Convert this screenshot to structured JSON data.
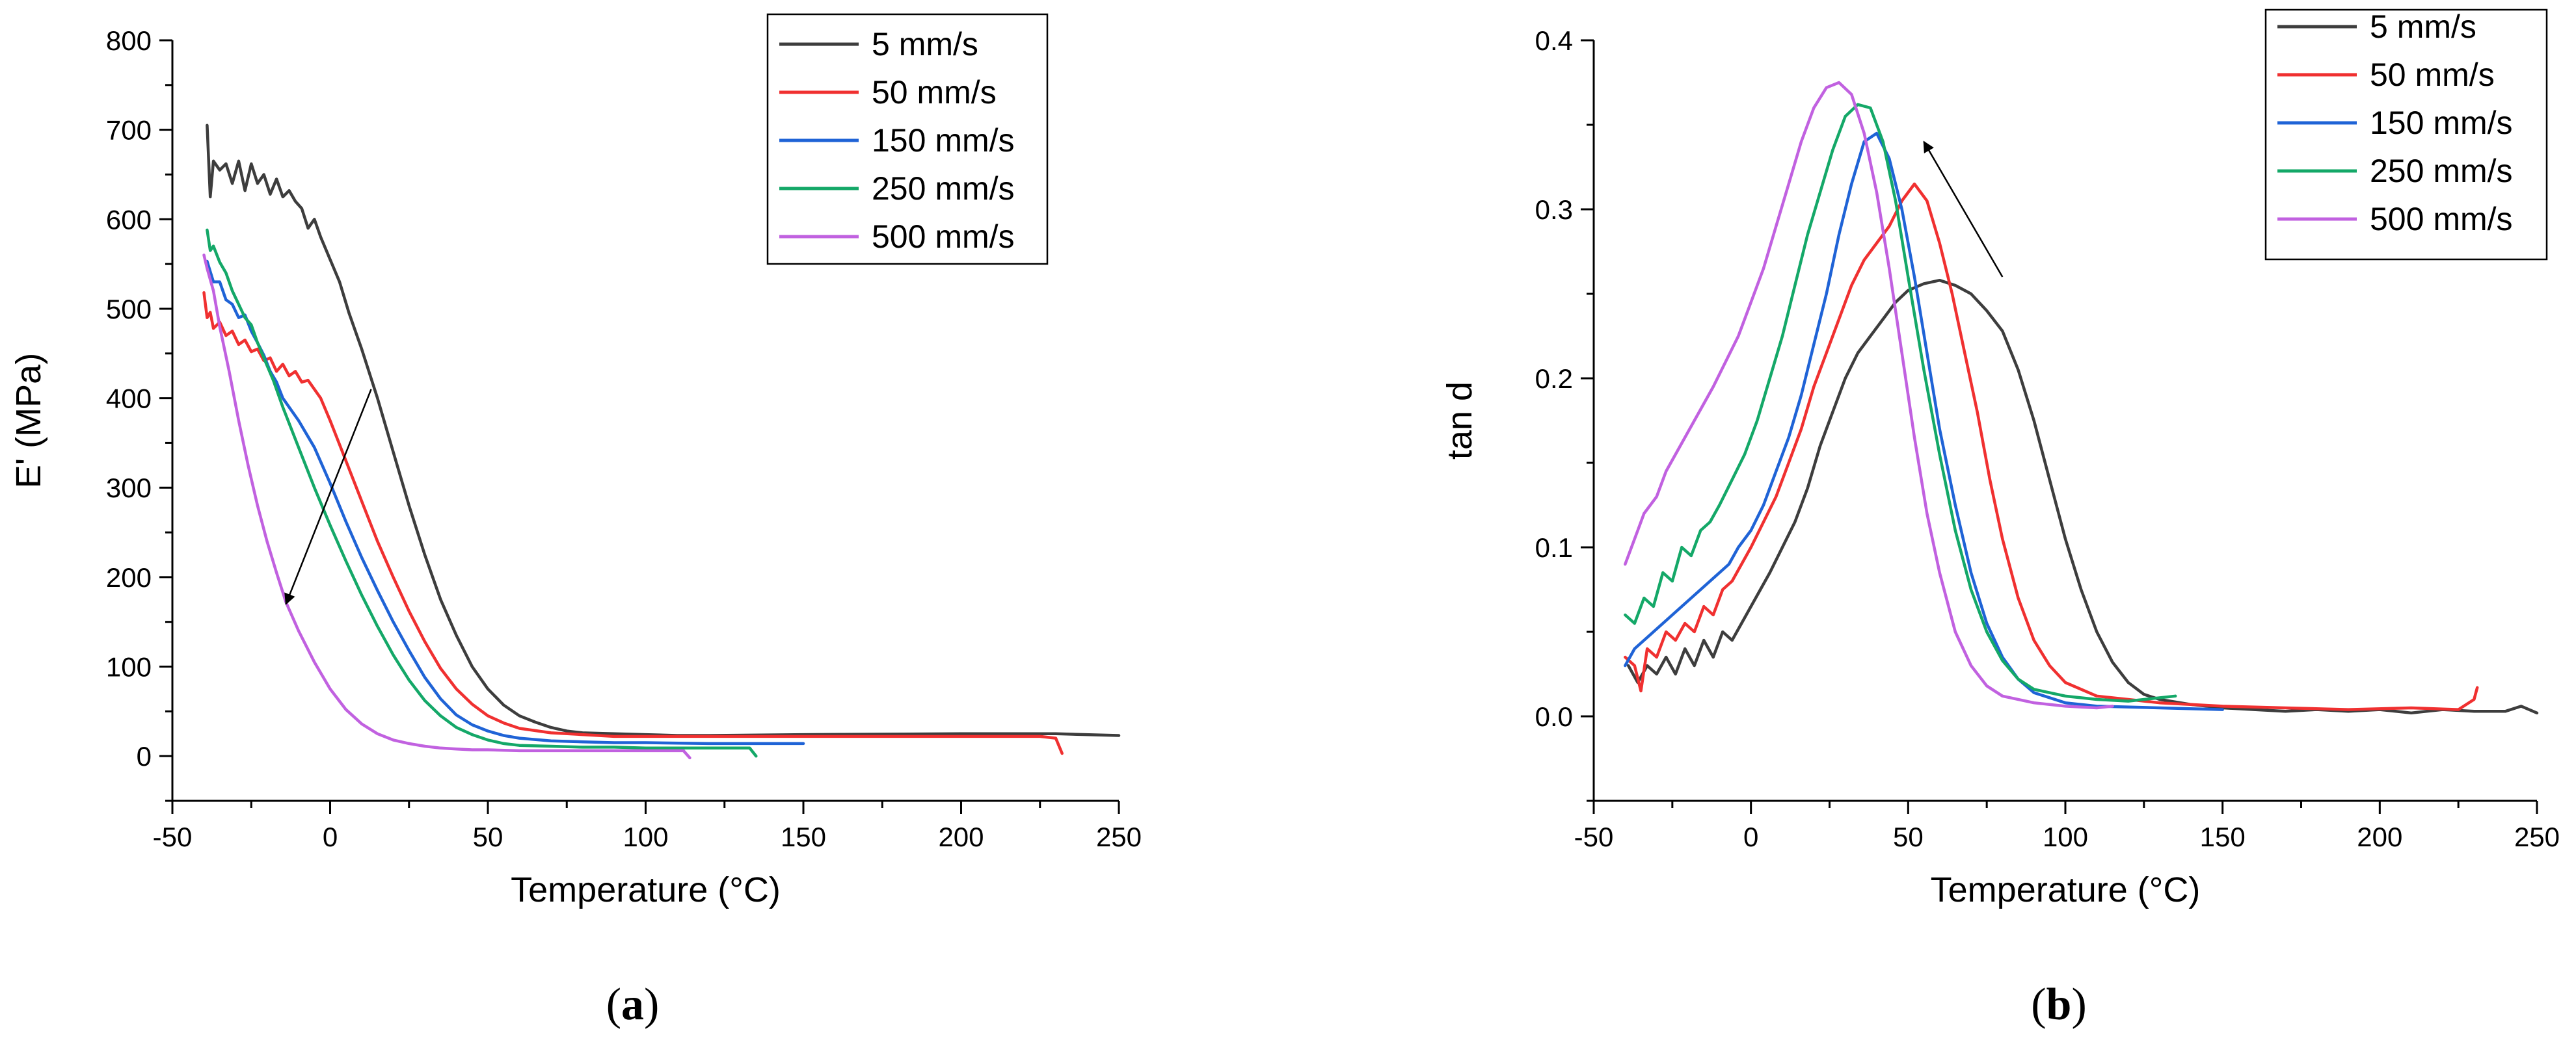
{
  "chart_data": [
    {
      "type": "line",
      "panel_label": "a",
      "title": "",
      "xlabel": "Temperature (°C)",
      "ylabel": "E' (MPa)",
      "xlim": [
        -50,
        250
      ],
      "ylim": [
        -50,
        800
      ],
      "xticks": [
        -50,
        0,
        50,
        100,
        150,
        200,
        250
      ],
      "yticks": [
        0,
        100,
        200,
        300,
        400,
        500,
        600,
        700,
        800
      ],
      "legend_position": "top-right",
      "arrow": {
        "from": [
          13,
          410
        ],
        "to": [
          -14,
          170
        ]
      },
      "series": [
        {
          "name": "5 mm/s",
          "color": "#3d3d3d",
          "x": [
            -39,
            -38,
            -37,
            -35,
            -33,
            -31,
            -29,
            -27,
            -25,
            -23,
            -21,
            -19,
            -17,
            -15,
            -13,
            -11,
            -9,
            -7,
            -5,
            -3,
            0,
            3,
            6,
            10,
            15,
            20,
            25,
            30,
            35,
            40,
            45,
            50,
            55,
            60,
            65,
            70,
            75,
            80,
            90,
            100,
            110,
            120,
            150,
            200,
            230,
            250
          ],
          "y": [
            705,
            625,
            665,
            655,
            662,
            640,
            665,
            632,
            662,
            640,
            650,
            628,
            645,
            625,
            632,
            620,
            612,
            590,
            600,
            580,
            555,
            530,
            495,
            455,
            400,
            340,
            280,
            225,
            175,
            135,
            100,
            75,
            57,
            45,
            38,
            32,
            28,
            26,
            25,
            24,
            23,
            23,
            24,
            25,
            25,
            23
          ]
        },
        {
          "name": "50 mm/s",
          "color": "#f03030",
          "x": [
            -40,
            -39,
            -38,
            -37,
            -35,
            -33,
            -31,
            -29,
            -27,
            -25,
            -23,
            -21,
            -19,
            -17,
            -15,
            -13,
            -11,
            -9,
            -7,
            -5,
            -3,
            0,
            5,
            10,
            15,
            20,
            25,
            30,
            35,
            40,
            45,
            50,
            55,
            60,
            70,
            80,
            90,
            100,
            150,
            200,
            225,
            230,
            232
          ],
          "y": [
            518,
            490,
            496,
            478,
            485,
            470,
            475,
            460,
            465,
            452,
            455,
            442,
            445,
            430,
            438,
            425,
            430,
            418,
            420,
            410,
            400,
            375,
            330,
            285,
            240,
            200,
            162,
            128,
            98,
            75,
            58,
            45,
            37,
            31,
            26,
            24,
            22,
            22,
            22,
            22,
            22,
            20,
            3
          ]
        },
        {
          "name": "150 mm/s",
          "color": "#1f63d6",
          "x": [
            -39,
            -37,
            -35,
            -33,
            -31,
            -29,
            -27,
            -25,
            -23,
            -21,
            -19,
            -17,
            -15,
            -10,
            -5,
            0,
            5,
            10,
            15,
            20,
            25,
            30,
            35,
            40,
            45,
            50,
            55,
            60,
            70,
            80,
            90,
            100,
            120,
            150
          ],
          "y": [
            553,
            530,
            530,
            510,
            505,
            490,
            493,
            475,
            462,
            448,
            430,
            418,
            400,
            375,
            345,
            305,
            262,
            222,
            185,
            150,
            118,
            88,
            64,
            46,
            35,
            28,
            23,
            20,
            17,
            16,
            15,
            15,
            14,
            14
          ]
        },
        {
          "name": "250 mm/s",
          "color": "#14a868",
          "x": [
            -39,
            -38,
            -37,
            -35,
            -33,
            -31,
            -29,
            -27,
            -25,
            -23,
            -21,
            -18,
            -15,
            -10,
            -5,
            0,
            5,
            10,
            15,
            20,
            25,
            30,
            35,
            40,
            45,
            50,
            55,
            60,
            70,
            80,
            90,
            100,
            120,
            133,
            135
          ],
          "y": [
            588,
            565,
            570,
            552,
            540,
            520,
            505,
            490,
            482,
            462,
            445,
            420,
            390,
            345,
            300,
            258,
            218,
            180,
            145,
            113,
            85,
            62,
            45,
            32,
            24,
            18,
            14,
            12,
            11,
            10,
            10,
            9,
            9,
            9,
            0
          ]
        },
        {
          "name": "500 mm/s",
          "color": "#c161e0",
          "x": [
            -40,
            -39,
            -37,
            -35,
            -32,
            -29,
            -26,
            -23,
            -20,
            -17,
            -14,
            -10,
            -5,
            0,
            5,
            10,
            15,
            20,
            25,
            30,
            35,
            40,
            45,
            50,
            60,
            70,
            80,
            100,
            112,
            114
          ],
          "y": [
            560,
            545,
            520,
            480,
            430,
            375,
            325,
            280,
            240,
            205,
            172,
            140,
            105,
            75,
            52,
            36,
            25,
            18,
            14,
            11,
            9,
            8,
            7,
            7,
            6,
            6,
            6,
            6,
            6,
            -2
          ]
        }
      ]
    },
    {
      "type": "line",
      "panel_label": "b",
      "title": "",
      "xlabel": "Temperature (°C)",
      "ylabel": "tan d",
      "xlim": [
        -50,
        250
      ],
      "ylim": [
        -0.05,
        0.4
      ],
      "xticks": [
        -50,
        0,
        50,
        100,
        150,
        200,
        250
      ],
      "yticks": [
        0.0,
        0.1,
        0.2,
        0.3,
        0.4
      ],
      "legend_position": "top-right",
      "arrow": {
        "from": [
          80,
          0.26
        ],
        "to": [
          55,
          0.34
        ]
      },
      "series": [
        {
          "name": "5 mm/s",
          "color": "#3d3d3d",
          "x": [
            -39,
            -36,
            -33,
            -30,
            -27,
            -24,
            -21,
            -18,
            -15,
            -12,
            -9,
            -6,
            -3,
            0,
            3,
            6,
            10,
            14,
            18,
            22,
            26,
            30,
            34,
            38,
            42,
            46,
            50,
            55,
            60,
            65,
            70,
            75,
            80,
            85,
            90,
            95,
            100,
            105,
            110,
            115,
            120,
            125,
            130,
            140,
            150,
            160,
            170,
            180,
            190,
            200,
            210,
            220,
            230,
            240,
            245,
            250
          ],
          "y": [
            0.03,
            0.02,
            0.03,
            0.025,
            0.035,
            0.025,
            0.04,
            0.03,
            0.045,
            0.035,
            0.05,
            0.045,
            0.055,
            0.065,
            0.075,
            0.085,
            0.1,
            0.115,
            0.135,
            0.16,
            0.18,
            0.2,
            0.215,
            0.225,
            0.235,
            0.245,
            0.252,
            0.256,
            0.258,
            0.255,
            0.25,
            0.24,
            0.228,
            0.205,
            0.175,
            0.14,
            0.105,
            0.075,
            0.05,
            0.032,
            0.02,
            0.013,
            0.01,
            0.007,
            0.005,
            0.004,
            0.003,
            0.004,
            0.003,
            0.004,
            0.002,
            0.004,
            0.003,
            0.003,
            0.006,
            0.002
          ]
        },
        {
          "name": "50 mm/s",
          "color": "#f03030",
          "x": [
            -40,
            -37,
            -35,
            -33,
            -30,
            -27,
            -24,
            -21,
            -18,
            -15,
            -12,
            -9,
            -6,
            -3,
            0,
            4,
            8,
            12,
            16,
            20,
            24,
            28,
            32,
            36,
            40,
            44,
            48,
            52,
            56,
            60,
            64,
            68,
            72,
            76,
            80,
            85,
            90,
            95,
            100,
            110,
            120,
            130,
            150,
            170,
            190,
            210,
            225,
            230,
            231
          ],
          "y": [
            0.035,
            0.03,
            0.015,
            0.04,
            0.035,
            0.05,
            0.045,
            0.055,
            0.05,
            0.065,
            0.06,
            0.075,
            0.08,
            0.09,
            0.1,
            0.115,
            0.13,
            0.15,
            0.17,
            0.195,
            0.215,
            0.235,
            0.255,
            0.27,
            0.28,
            0.29,
            0.305,
            0.315,
            0.305,
            0.28,
            0.25,
            0.215,
            0.18,
            0.14,
            0.105,
            0.07,
            0.045,
            0.03,
            0.02,
            0.012,
            0.01,
            0.008,
            0.006,
            0.005,
            0.004,
            0.005,
            0.004,
            0.01,
            0.017
          ]
        },
        {
          "name": "150 mm/s",
          "color": "#1f63d6",
          "x": [
            -40,
            -37,
            -34,
            -31,
            -28,
            -25,
            -22,
            -19,
            -16,
            -13,
            -10,
            -7,
            -4,
            0,
            4,
            8,
            12,
            16,
            20,
            24,
            28,
            32,
            36,
            40,
            44,
            48,
            52,
            56,
            60,
            65,
            70,
            75,
            80,
            85,
            90,
            100,
            110,
            130,
            150
          ],
          "y": [
            0.03,
            0.04,
            0.045,
            0.05,
            0.055,
            0.06,
            0.065,
            0.07,
            0.075,
            0.08,
            0.085,
            0.09,
            0.1,
            0.11,
            0.125,
            0.145,
            0.165,
            0.19,
            0.22,
            0.25,
            0.285,
            0.315,
            0.34,
            0.345,
            0.33,
            0.3,
            0.26,
            0.215,
            0.17,
            0.125,
            0.085,
            0.055,
            0.035,
            0.022,
            0.014,
            0.008,
            0.006,
            0.005,
            0.004
          ]
        },
        {
          "name": "250 mm/s",
          "color": "#14a868",
          "x": [
            -40,
            -37,
            -34,
            -31,
            -28,
            -25,
            -22,
            -19,
            -16,
            -13,
            -10,
            -6,
            -2,
            2,
            6,
            10,
            14,
            18,
            22,
            26,
            30,
            34,
            38,
            42,
            46,
            50,
            55,
            60,
            65,
            70,
            75,
            80,
            85,
            90,
            100,
            110,
            120,
            135
          ],
          "y": [
            0.06,
            0.055,
            0.07,
            0.065,
            0.085,
            0.08,
            0.1,
            0.095,
            0.11,
            0.115,
            0.125,
            0.14,
            0.155,
            0.175,
            0.2,
            0.225,
            0.255,
            0.285,
            0.31,
            0.335,
            0.355,
            0.362,
            0.36,
            0.34,
            0.305,
            0.26,
            0.205,
            0.155,
            0.11,
            0.075,
            0.05,
            0.033,
            0.022,
            0.016,
            0.012,
            0.01,
            0.009,
            0.012
          ]
        },
        {
          "name": "500 mm/s",
          "color": "#c161e0",
          "x": [
            -40,
            -38,
            -36,
            -34,
            -32,
            -30,
            -27,
            -24,
            -21,
            -18,
            -15,
            -12,
            -8,
            -4,
            0,
            4,
            8,
            12,
            16,
            20,
            24,
            28,
            32,
            36,
            40,
            44,
            48,
            52,
            56,
            60,
            65,
            70,
            75,
            80,
            90,
            100,
            110,
            115
          ],
          "y": [
            0.09,
            0.1,
            0.11,
            0.12,
            0.125,
            0.13,
            0.145,
            0.155,
            0.165,
            0.175,
            0.185,
            0.195,
            0.21,
            0.225,
            0.245,
            0.265,
            0.29,
            0.315,
            0.34,
            0.36,
            0.372,
            0.375,
            0.368,
            0.345,
            0.31,
            0.265,
            0.215,
            0.165,
            0.12,
            0.085,
            0.05,
            0.03,
            0.018,
            0.012,
            0.008,
            0.006,
            0.005,
            0.006
          ]
        }
      ]
    }
  ]
}
